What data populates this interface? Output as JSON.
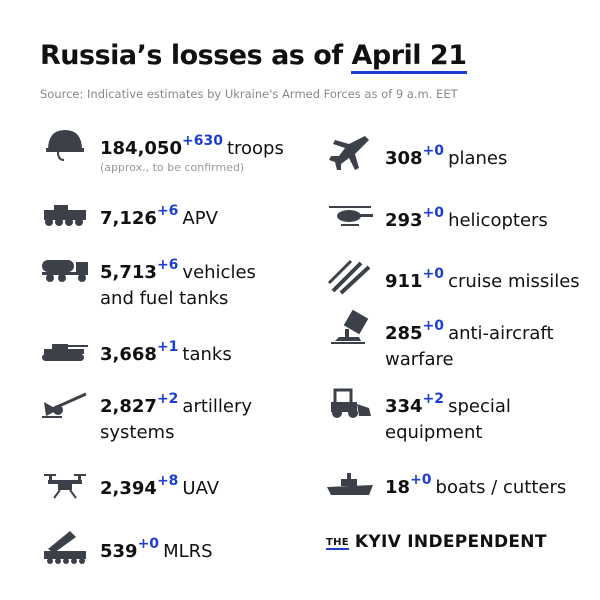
{
  "title": {
    "prefix": "Russia’s losses as of ",
    "date": "April 21"
  },
  "source": "Source: Indicative estimates by Ukraine's Armed Forces as of 9 a.m. EET",
  "accent": "#1d3fd0",
  "icon_color": "#3c4049",
  "left": [
    {
      "icon": "helmet-icon",
      "value": "184,050",
      "delta": "+630",
      "label": "troops",
      "note": "(approx., to be confirmed)"
    },
    {
      "icon": "apv-icon",
      "value": "7,126",
      "delta": "+6",
      "label": "APV"
    },
    {
      "icon": "fuel-truck-icon",
      "value": "5,713",
      "delta": "+6",
      "label": "vehicles",
      "label2": "and fuel tanks"
    },
    {
      "icon": "tank-icon",
      "value": "3,668",
      "delta": "+1",
      "label": "tanks"
    },
    {
      "icon": "artillery-icon",
      "value": "2,827",
      "delta": "+2",
      "label": "artillery",
      "label2": "systems"
    },
    {
      "icon": "drone-icon",
      "value": "2,394",
      "delta": "+8",
      "label": "UAV"
    },
    {
      "icon": "mlrs-icon",
      "value": "539",
      "delta": "+0",
      "label": "MLRS"
    }
  ],
  "right": [
    {
      "icon": "plane-icon",
      "value": "308",
      "delta": "+0",
      "label": "planes"
    },
    {
      "icon": "helicopter-icon",
      "value": "293",
      "delta": "+0",
      "label": "helicopters"
    },
    {
      "icon": "missile-icon",
      "value": "911",
      "delta": "+0",
      "label": "cruise missiles"
    },
    {
      "icon": "anti-aircraft-icon",
      "value": "285",
      "delta": "+0",
      "label": "anti-aircraft",
      "label2": "warfare"
    },
    {
      "icon": "loader-icon",
      "value": "334",
      "delta": "+2",
      "label": "special",
      "label2": "equipment"
    },
    {
      "icon": "boat-icon",
      "value": "18",
      "delta": "+0",
      "label": "boats / cutters"
    }
  ],
  "logo": {
    "the": "THE",
    "name": "KYIV INDEPENDENT"
  }
}
